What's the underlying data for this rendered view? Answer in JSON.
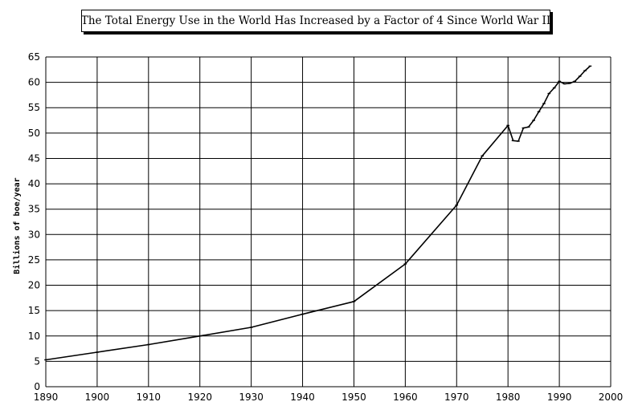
{
  "chart_data": {
    "type": "line",
    "title": "The Total Energy Use in the World Has Increased by a Factor of 4 Since World War II",
    "xlabel": "",
    "ylabel": "Billions of boe/year",
    "xlim": [
      1890,
      2000
    ],
    "ylim": [
      0,
      65
    ],
    "x_ticks": [
      1890,
      1900,
      1910,
      1920,
      1930,
      1940,
      1950,
      1960,
      1970,
      1980,
      1990,
      2000
    ],
    "y_ticks": [
      0,
      5,
      10,
      15,
      20,
      25,
      30,
      35,
      40,
      45,
      50,
      55,
      60,
      65
    ],
    "grid": true,
    "legend": "none",
    "series": [
      {
        "x": [
          1890,
          1900,
          1910,
          1920,
          1930,
          1940,
          1950,
          1960,
          1970,
          1975,
          1980,
          1981,
          1982,
          1983,
          1984,
          1985,
          1986,
          1987,
          1988,
          1989,
          1990,
          1991,
          1992,
          1993,
          1994,
          1995,
          1996
        ],
        "y": [
          5.3,
          6.8,
          8.3,
          10.0,
          11.7,
          14.3,
          16.8,
          24.2,
          35.8,
          45.5,
          51.5,
          48.5,
          48.4,
          51.0,
          51.2,
          52.5,
          54.2,
          55.8,
          57.8,
          58.9,
          60.2,
          59.7,
          59.8,
          60.2,
          61.2,
          62.3,
          63.2
        ],
        "color": "#000000"
      }
    ]
  }
}
